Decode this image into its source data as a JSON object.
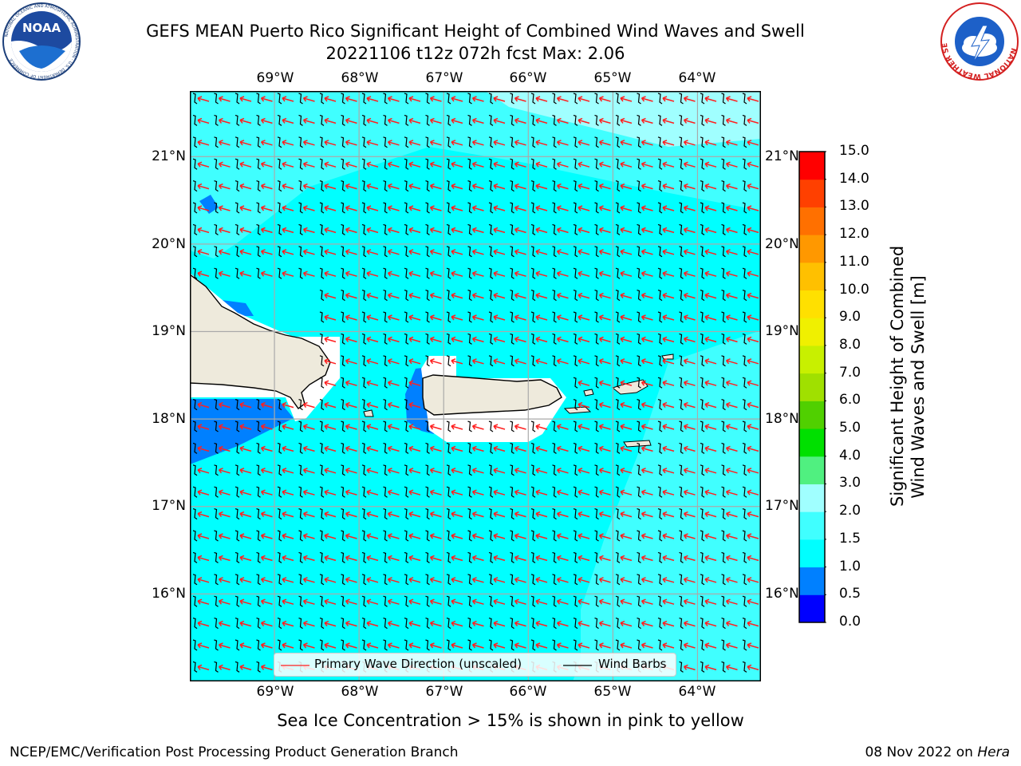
{
  "header": {
    "title_line1": "GEFS MEAN Puerto Rico Significant Height of Combined Wind Waves and Swell",
    "title_line2": "20221106 t12z 072h fcst   Max: 2.06"
  },
  "logos": {
    "noaa_text": "NOAA",
    "noaa_ring_text": "NATIONAL OCEANIC AND ATMOSPHERIC ADMINISTRATION · U.S. DEPARTMENT OF COMMERCE",
    "nws_ring_text": "NATIONAL WEATHER SERVICE"
  },
  "map": {
    "lon_labels": [
      "69°W",
      "68°W",
      "67°W",
      "66°W",
      "65°W",
      "64°W"
    ],
    "lat_labels": [
      "21°N",
      "20°N",
      "19°N",
      "18°N",
      "17°N",
      "16°N"
    ],
    "extent": {
      "lon_min": -70.0,
      "lon_max": -63.25,
      "lat_min": 15.0,
      "lat_max": 21.75
    },
    "ocean_color": "#00ffff",
    "land_color": "#eeeadc",
    "wave_arrow_color": "#ff2020",
    "barb_color": "#000000",
    "wave_direction": "toward west-northwest",
    "wind_barbs": "easterly, 10 kt"
  },
  "colorbar": {
    "title_line1": "Significant Height of Combined",
    "title_line2": "Wind Waves and Swell [m]",
    "levels": [
      "0.0",
      "0.5",
      "1.0",
      "1.5",
      "2.0",
      "3.0",
      "4.0",
      "5.0",
      "6.0",
      "7.0",
      "8.0",
      "9.0",
      "10.0",
      "11.0",
      "12.0",
      "13.0",
      "14.0",
      "15.0"
    ],
    "colors": [
      "#0000ff",
      "#0080ff",
      "#00ffff",
      "#40ffff",
      "#a0ffff",
      "#50f080",
      "#00e000",
      "#50d000",
      "#a0e000",
      "#c8f000",
      "#f0f000",
      "#ffe000",
      "#ffc000",
      "#ff9800",
      "#ff7000",
      "#ff4000",
      "#ff0000"
    ]
  },
  "legend": {
    "wave_label": "Primary Wave Direction (unscaled)",
    "barb_label": "Wind Barbs"
  },
  "footer": {
    "note": "Sea Ice Concentration > 15% is shown in pink to yellow",
    "credit": "NCEP/EMC/Verification Post Processing Product Generation Branch",
    "date": "08 Nov 2022 on ",
    "machine": "Hera"
  }
}
